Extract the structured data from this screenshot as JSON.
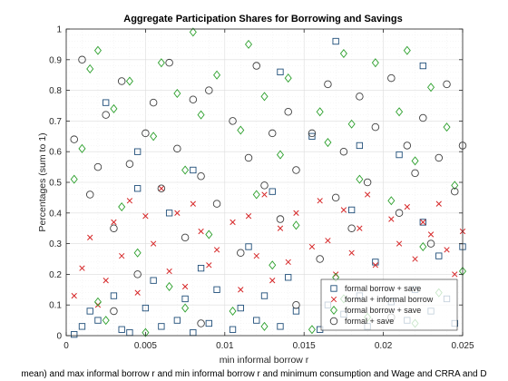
{
  "chart_data": {
    "type": "scatter",
    "title": "Aggregate Participation Shares for Borrowing and Savings",
    "xlabel": "min informal borrow r",
    "ylabel": "Percentages (sum to 1)",
    "caption": "mean) and max informal borrow r and min informal borrow r and minimum consumption and Wage and CRRA and D",
    "xlim": [
      0,
      0.025
    ],
    "ylim": [
      0,
      1
    ],
    "xticks": [
      0,
      0.005,
      0.01,
      0.015,
      0.02,
      0.025
    ],
    "xtick_labels": [
      "0",
      "0.005",
      "0.01",
      "0.015",
      "0.02",
      "0.025"
    ],
    "yticks": [
      0,
      0.1,
      0.2,
      0.3,
      0.4,
      0.5,
      0.6,
      0.7,
      0.8,
      0.9,
      1
    ],
    "ytick_labels": [
      "0",
      "0.1",
      "0.2",
      "0.3",
      "0.4",
      "0.5",
      "0.6",
      "0.7",
      "0.8",
      "0.9",
      "1"
    ],
    "grid": true,
    "legend_position": "bottom-right",
    "series": [
      {
        "name": "formal borrow + save",
        "marker": "square",
        "color": "#1f4e79",
        "points": [
          [
            0.0005,
            0.004
          ],
          [
            0.001,
            0.03
          ],
          [
            0.0015,
            0.08
          ],
          [
            0.002,
            0.05
          ],
          [
            0.0025,
            0.76
          ],
          [
            0.003,
            0.13
          ],
          [
            0.0035,
            0.02
          ],
          [
            0.004,
            0.01
          ],
          [
            0.0045,
            0.48
          ],
          [
            0.005,
            0.09
          ],
          [
            0.0055,
            0.18
          ],
          [
            0.006,
            0.03
          ],
          [
            0.0065,
            0.4
          ],
          [
            0.007,
            0.05
          ],
          [
            0.0075,
            0.12
          ],
          [
            0.008,
            0.01
          ],
          [
            0.0085,
            0.22
          ],
          [
            0.009,
            0.04
          ],
          [
            0.0095,
            0.15
          ],
          [
            0.0105,
            0.02
          ],
          [
            0.011,
            0.09
          ],
          [
            0.0115,
            0.29
          ],
          [
            0.012,
            0.05
          ],
          [
            0.0125,
            0.13
          ],
          [
            0.013,
            0.47
          ],
          [
            0.0135,
            0.03
          ],
          [
            0.014,
            0.19
          ],
          [
            0.0145,
            0.08
          ],
          [
            0.0155,
            0.65
          ],
          [
            0.016,
            0.02
          ],
          [
            0.0165,
            0.1
          ],
          [
            0.017,
            0.96
          ],
          [
            0.0175,
            0.07
          ],
          [
            0.018,
            0.41
          ],
          [
            0.0185,
            0.13
          ],
          [
            0.019,
            0.03
          ],
          [
            0.0195,
            0.24
          ],
          [
            0.0205,
            0.11
          ],
          [
            0.021,
            0.59
          ],
          [
            0.0215,
            0.05
          ],
          [
            0.022,
            0.15
          ],
          [
            0.0225,
            0.37
          ],
          [
            0.023,
            0.08
          ],
          [
            0.0235,
            0.26
          ],
          [
            0.024,
            0.12
          ],
          [
            0.0245,
            0.04
          ],
          [
            0.025,
            0.29
          ],
          [
            0.0045,
            0.6
          ],
          [
            0.008,
            0.54
          ],
          [
            0.0135,
            0.86
          ],
          [
            0.0185,
            0.62
          ],
          [
            0.0225,
            0.88
          ]
        ]
      },
      {
        "name": "formal + informal borrow",
        "marker": "cross",
        "color": "#d62728",
        "points": [
          [
            0.0005,
            0.13
          ],
          [
            0.001,
            0.22
          ],
          [
            0.0015,
            0.32
          ],
          [
            0.002,
            0.1
          ],
          [
            0.0025,
            0.18
          ],
          [
            0.003,
            0.37
          ],
          [
            0.0035,
            0.26
          ],
          [
            0.004,
            0.44
          ],
          [
            0.0045,
            0.14
          ],
          [
            0.005,
            0.39
          ],
          [
            0.0055,
            0.3
          ],
          [
            0.006,
            0.48
          ],
          [
            0.0065,
            0.21
          ],
          [
            0.007,
            0.4
          ],
          [
            0.0075,
            0.16
          ],
          [
            0.008,
            0.43
          ],
          [
            0.0085,
            0.34
          ],
          [
            0.009,
            0.23
          ],
          [
            0.0095,
            0.28
          ],
          [
            0.0105,
            0.37
          ],
          [
            0.011,
            0.15
          ],
          [
            0.0115,
            0.39
          ],
          [
            0.012,
            0.26
          ],
          [
            0.0125,
            0.46
          ],
          [
            0.013,
            0.18
          ],
          [
            0.0135,
            0.35
          ],
          [
            0.014,
            0.24
          ],
          [
            0.0145,
            0.4
          ],
          [
            0.0155,
            0.29
          ],
          [
            0.016,
            0.44
          ],
          [
            0.0165,
            0.31
          ],
          [
            0.017,
            0.2
          ],
          [
            0.0175,
            0.41
          ],
          [
            0.018,
            0.27
          ],
          [
            0.0185,
            0.35
          ],
          [
            0.019,
            0.46
          ],
          [
            0.0195,
            0.23
          ],
          [
            0.0205,
            0.38
          ],
          [
            0.021,
            0.3
          ],
          [
            0.0215,
            0.42
          ],
          [
            0.022,
            0.25
          ],
          [
            0.0225,
            0.37
          ],
          [
            0.023,
            0.33
          ],
          [
            0.0235,
            0.43
          ],
          [
            0.024,
            0.28
          ],
          [
            0.0245,
            0.2
          ],
          [
            0.025,
            0.34
          ]
        ]
      },
      {
        "name": "formal borrow + save",
        "marker": "diamond",
        "color": "#2ca02c",
        "points": [
          [
            0.0005,
            0.51
          ],
          [
            0.001,
            0.61
          ],
          [
            0.0015,
            0.87
          ],
          [
            0.002,
            0.93
          ],
          [
            0.0025,
            0.05
          ],
          [
            0.003,
            0.74
          ],
          [
            0.0035,
            0.42
          ],
          [
            0.004,
            0.83
          ],
          [
            0.0045,
            0.27
          ],
          [
            0.005,
            0.01
          ],
          [
            0.0055,
            0.65
          ],
          [
            0.006,
            0.89
          ],
          [
            0.0065,
            0.16
          ],
          [
            0.007,
            0.79
          ],
          [
            0.0075,
            0.54
          ],
          [
            0.008,
            0.99
          ],
          [
            0.0085,
            0.72
          ],
          [
            0.009,
            0.33
          ],
          [
            0.0095,
            0.85
          ],
          [
            0.0105,
            0.08
          ],
          [
            0.011,
            0.67
          ],
          [
            0.0115,
            0.95
          ],
          [
            0.012,
            0.46
          ],
          [
            0.0125,
            0.78
          ],
          [
            0.013,
            0.23
          ],
          [
            0.0135,
            0.59
          ],
          [
            0.014,
            0.84
          ],
          [
            0.0145,
            0.36
          ],
          [
            0.0155,
            0.02
          ],
          [
            0.016,
            0.73
          ],
          [
            0.0165,
            0.63
          ],
          [
            0.017,
            0.19
          ],
          [
            0.0175,
            0.92
          ],
          [
            0.018,
            0.69
          ],
          [
            0.0185,
            0.51
          ],
          [
            0.019,
            0.06
          ],
          [
            0.0195,
            0.89
          ],
          [
            0.0205,
            0.44
          ],
          [
            0.021,
            0.73
          ],
          [
            0.0215,
            0.93
          ],
          [
            0.022,
            0.57
          ],
          [
            0.0225,
            0.29
          ],
          [
            0.023,
            0.81
          ],
          [
            0.0235,
            0.14
          ],
          [
            0.024,
            0.68
          ],
          [
            0.0245,
            0.49
          ],
          [
            0.025,
            0.21
          ],
          [
            0.002,
            0.11
          ],
          [
            0.0075,
            0.09
          ],
          [
            0.0125,
            0.03
          ],
          [
            0.0175,
            0.12
          ],
          [
            0.022,
            0.04
          ]
        ]
      },
      {
        "name": "formal + save",
        "marker": "circle",
        "color": "#404040",
        "points": [
          [
            0.0005,
            0.64
          ],
          [
            0.001,
            0.9
          ],
          [
            0.0015,
            0.46
          ],
          [
            0.002,
            0.55
          ],
          [
            0.0025,
            0.72
          ],
          [
            0.003,
            0.35
          ],
          [
            0.0035,
            0.83
          ],
          [
            0.004,
            0.56
          ],
          [
            0.0045,
            0.2
          ],
          [
            0.005,
            0.66
          ],
          [
            0.0055,
            0.76
          ],
          [
            0.006,
            0.48
          ],
          [
            0.0065,
            0.89
          ],
          [
            0.007,
            0.61
          ],
          [
            0.0075,
            0.32
          ],
          [
            0.008,
            0.77
          ],
          [
            0.0085,
            0.52
          ],
          [
            0.009,
            0.8
          ],
          [
            0.0095,
            0.43
          ],
          [
            0.0105,
            0.7
          ],
          [
            0.011,
            0.27
          ],
          [
            0.0115,
            0.58
          ],
          [
            0.012,
            0.88
          ],
          [
            0.0125,
            0.49
          ],
          [
            0.013,
            0.66
          ],
          [
            0.0135,
            0.38
          ],
          [
            0.014,
            0.73
          ],
          [
            0.0145,
            0.54
          ],
          [
            0.0155,
            0.66
          ],
          [
            0.016,
            0.25
          ],
          [
            0.0165,
            0.82
          ],
          [
            0.017,
            0.45
          ],
          [
            0.0175,
            0.6
          ],
          [
            0.018,
            0.35
          ],
          [
            0.0185,
            0.78
          ],
          [
            0.019,
            0.5
          ],
          [
            0.0195,
            0.68
          ],
          [
            0.0205,
            0.84
          ],
          [
            0.021,
            0.4
          ],
          [
            0.0215,
            0.62
          ],
          [
            0.022,
            0.53
          ],
          [
            0.0225,
            0.71
          ],
          [
            0.023,
            0.3
          ],
          [
            0.0235,
            0.58
          ],
          [
            0.024,
            0.82
          ],
          [
            0.0245,
            0.47
          ],
          [
            0.025,
            0.62
          ],
          [
            0.003,
            0.08
          ],
          [
            0.0085,
            0.04
          ],
          [
            0.0145,
            0.1
          ],
          [
            0.0205,
            0.06
          ]
        ]
      }
    ]
  }
}
